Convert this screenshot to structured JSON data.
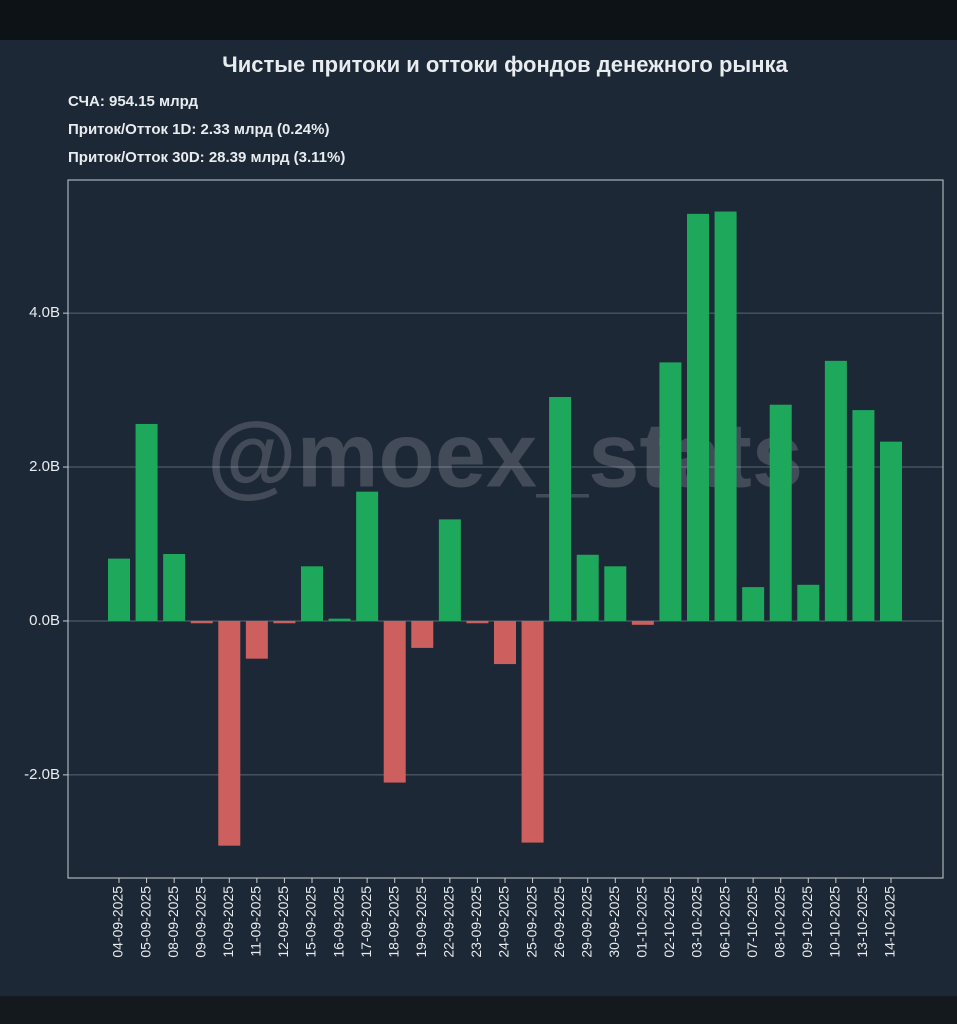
{
  "chart_data": {
    "type": "bar",
    "title": "Чистые притоки и оттоки фондов денежного рынка",
    "annotations": [
      "СЧА: 954.15 млрд",
      "Приток/Отток 1D: 2.33 млрд (0.24%)",
      "Приток/Отток 30D: 28.39 млрд (3.11%)"
    ],
    "watermark": "@moex_stats",
    "categories": [
      "04-09-2025",
      "05-09-2025",
      "08-09-2025",
      "09-09-2025",
      "10-09-2025",
      "11-09-2025",
      "12-09-2025",
      "15-09-2025",
      "16-09-2025",
      "17-09-2025",
      "18-09-2025",
      "19-09-2025",
      "22-09-2025",
      "23-09-2025",
      "24-09-2025",
      "25-09-2025",
      "26-09-2025",
      "29-09-2025",
      "30-09-2025",
      "01-10-2025",
      "02-10-2025",
      "03-10-2025",
      "06-10-2025",
      "07-10-2025",
      "08-10-2025",
      "09-10-2025",
      "10-10-2025",
      "13-10-2025",
      "14-10-2025"
    ],
    "values": [
      0.81,
      2.56,
      0.87,
      -0.03,
      -2.92,
      -0.49,
      -0.03,
      0.71,
      0.03,
      1.68,
      -2.1,
      -0.35,
      1.32,
      -0.03,
      -0.56,
      -2.88,
      2.91,
      0.86,
      0.71,
      -0.05,
      3.36,
      5.29,
      5.32,
      0.44,
      2.81,
      0.47,
      3.38,
      2.74,
      2.33
    ],
    "positive_color": "#1ea85c",
    "negative_color": "#cd5f5f",
    "ylim": [
      -3.34,
      5.73
    ],
    "yticks": [
      {
        "value": -2,
        "label": "-2.0B"
      },
      {
        "value": 0,
        "label": "0.0B"
      },
      {
        "value": 2,
        "label": "2.0B"
      },
      {
        "value": 4,
        "label": "4.0B"
      }
    ],
    "grid": true
  }
}
